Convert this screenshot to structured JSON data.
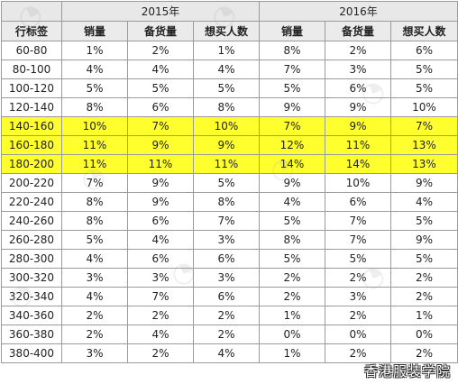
{
  "header": {
    "years": [
      "2015年",
      "2016年"
    ],
    "first_col": "行标签",
    "cols": [
      "销量",
      "备货量",
      "想买人数",
      "销量",
      "备货量",
      "想买人数"
    ]
  },
  "rows": [
    {
      "label": "60-80",
      "v": [
        "1%",
        "2%",
        "1%",
        "8%",
        "2%",
        "6%"
      ],
      "highlight": false
    },
    {
      "label": "80-100",
      "v": [
        "4%",
        "4%",
        "4%",
        "7%",
        "3%",
        "5%"
      ],
      "highlight": false
    },
    {
      "label": "100-120",
      "v": [
        "5%",
        "5%",
        "5%",
        "5%",
        "6%",
        "5%"
      ],
      "highlight": false
    },
    {
      "label": "120-140",
      "v": [
        "8%",
        "6%",
        "8%",
        "9%",
        "9%",
        "10%"
      ],
      "highlight": false
    },
    {
      "label": "140-160",
      "v": [
        "10%",
        "7%",
        "10%",
        "7%",
        "9%",
        "7%"
      ],
      "highlight": true
    },
    {
      "label": "160-180",
      "v": [
        "11%",
        "9%",
        "9%",
        "12%",
        "11%",
        "13%"
      ],
      "highlight": true
    },
    {
      "label": "180-200",
      "v": [
        "11%",
        "11%",
        "11%",
        "14%",
        "14%",
        "13%"
      ],
      "highlight": true
    },
    {
      "label": "200-220",
      "v": [
        "7%",
        "9%",
        "5%",
        "9%",
        "10%",
        "9%"
      ],
      "highlight": false
    },
    {
      "label": "220-240",
      "v": [
        "8%",
        "9%",
        "8%",
        "4%",
        "6%",
        "4%"
      ],
      "highlight": false
    },
    {
      "label": "240-260",
      "v": [
        "8%",
        "6%",
        "7%",
        "5%",
        "7%",
        "5%"
      ],
      "highlight": false
    },
    {
      "label": "260-280",
      "v": [
        "5%",
        "4%",
        "3%",
        "8%",
        "7%",
        "9%"
      ],
      "highlight": false
    },
    {
      "label": "280-300",
      "v": [
        "4%",
        "6%",
        "6%",
        "5%",
        "5%",
        "5%"
      ],
      "highlight": false
    },
    {
      "label": "300-320",
      "v": [
        "3%",
        "3%",
        "3%",
        "2%",
        "2%",
        "2%"
      ],
      "highlight": false
    },
    {
      "label": "320-340",
      "v": [
        "4%",
        "7%",
        "6%",
        "2%",
        "3%",
        "2%"
      ],
      "highlight": false
    },
    {
      "label": "340-360",
      "v": [
        "2%",
        "2%",
        "2%",
        "1%",
        "2%",
        "1%"
      ],
      "highlight": false
    },
    {
      "label": "360-380",
      "v": [
        "2%",
        "4%",
        "2%",
        "0%",
        "0%",
        "0%"
      ],
      "highlight": false
    },
    {
      "label": "380-400",
      "v": [
        "3%",
        "2%",
        "4%",
        "1%",
        "2%",
        "2%"
      ],
      "highlight": false
    }
  ],
  "watermark": "香港服装学院",
  "colors": {
    "highlight": "#ffff2e",
    "header_bg": "#e8e8e8",
    "border": "#9a9a9a"
  }
}
